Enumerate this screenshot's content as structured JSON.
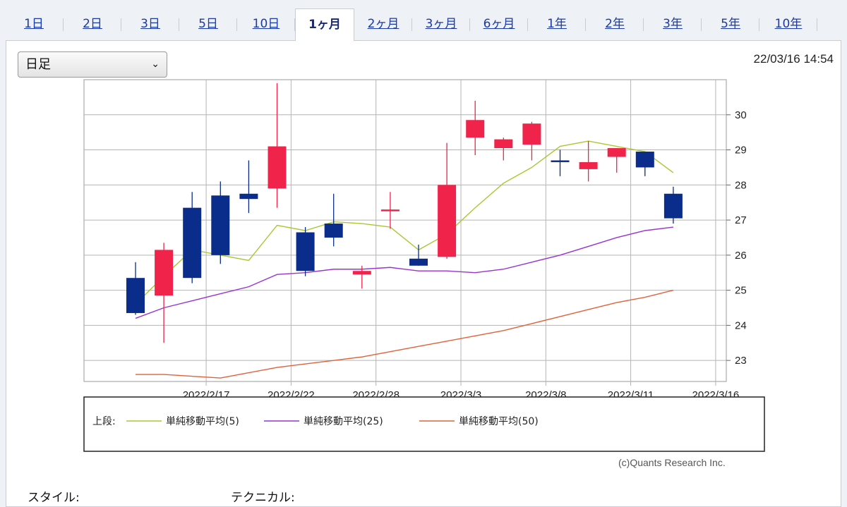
{
  "tabs": [
    {
      "label": "1日",
      "active": false
    },
    {
      "label": "2日",
      "active": false
    },
    {
      "label": "3日",
      "active": false
    },
    {
      "label": "5日",
      "active": false
    },
    {
      "label": "10日",
      "active": false
    },
    {
      "label": "1ヶ月",
      "active": true
    },
    {
      "label": "2ヶ月",
      "active": false
    },
    {
      "label": "3ヶ月",
      "active": false
    },
    {
      "label": "6ヶ月",
      "active": false
    },
    {
      "label": "1年",
      "active": false
    },
    {
      "label": "2年",
      "active": false
    },
    {
      "label": "3年",
      "active": false
    },
    {
      "label": "5年",
      "active": false
    },
    {
      "label": "10年",
      "active": false
    }
  ],
  "period_select": {
    "value": "日足"
  },
  "timestamp": "22/03/16 14:54",
  "credit": "(c)Quants Research Inc.",
  "bottom": {
    "style_label": "スタイル:",
    "technical_label": "テクニカル:"
  },
  "legend": {
    "prefix": "上段:",
    "items": [
      {
        "label": "単純移動平均(5)",
        "color": "#a8c832"
      },
      {
        "label": "単純移動平均(25)",
        "color": "#9a32d0"
      },
      {
        "label": "単純移動平均(50)",
        "color": "#e0623a"
      }
    ]
  },
  "colors": {
    "up": "#f0244a",
    "down": "#0a2d8c",
    "grid": "#b4b4b4"
  },
  "chart_data": {
    "type": "candlestick",
    "ylim": [
      22.4,
      31.0
    ],
    "yticks": [
      23,
      24,
      25,
      26,
      27,
      28,
      29,
      30
    ],
    "xticks": [
      {
        "index": 1,
        "label": "2022/2/17"
      },
      {
        "index": 4,
        "label": "2022/2/22"
      },
      {
        "index": 7,
        "label": "2022/2/28"
      },
      {
        "index": 10,
        "label": "2022/3/3"
      },
      {
        "index": 13,
        "label": "2022/3/8"
      },
      {
        "index": 16,
        "label": "2022/3/11"
      },
      {
        "index": 19,
        "label": "2022/3/16"
      }
    ],
    "candles": [
      {
        "open": 25.35,
        "high": 25.8,
        "low": 24.3,
        "close": 24.35
      },
      {
        "open": 24.85,
        "high": 26.35,
        "low": 23.5,
        "close": 26.15
      },
      {
        "open": 27.35,
        "high": 27.8,
        "low": 25.2,
        "close": 25.35
      },
      {
        "open": 27.7,
        "high": 28.1,
        "low": 25.75,
        "close": 26.0
      },
      {
        "open": 27.75,
        "high": 28.7,
        "low": 27.2,
        "close": 27.6
      },
      {
        "open": 27.9,
        "high": 30.9,
        "low": 27.35,
        "close": 29.1
      },
      {
        "open": 26.65,
        "high": 26.8,
        "low": 25.4,
        "close": 25.55
      },
      {
        "open": 26.9,
        "high": 27.75,
        "low": 26.25,
        "close": 26.5
      },
      {
        "open": 25.45,
        "high": 25.7,
        "low": 25.05,
        "close": 25.55
      },
      {
        "open": 27.25,
        "high": 27.8,
        "low": 26.75,
        "close": 27.3
      },
      {
        "open": 25.9,
        "high": 26.3,
        "low": 25.7,
        "close": 25.7
      },
      {
        "open": 25.95,
        "high": 29.2,
        "low": 25.9,
        "close": 28.0
      },
      {
        "open": 29.35,
        "high": 30.4,
        "low": 28.85,
        "close": 29.85
      },
      {
        "open": 29.05,
        "high": 29.35,
        "low": 28.7,
        "close": 29.3
      },
      {
        "open": 29.15,
        "high": 29.8,
        "low": 28.7,
        "close": 29.75
      },
      {
        "open": 28.7,
        "high": 29.0,
        "low": 28.25,
        "close": 28.65
      },
      {
        "open": 28.45,
        "high": 29.25,
        "low": 28.1,
        "close": 28.65
      },
      {
        "open": 28.8,
        "high": 29.05,
        "low": 28.35,
        "close": 29.05
      },
      {
        "open": 28.95,
        "high": 28.95,
        "low": 28.25,
        "close": 28.5
      },
      {
        "open": 27.75,
        "high": 27.95,
        "low": 26.9,
        "close": 27.05
      }
    ],
    "sma5": [
      24.6,
      25.4,
      26.15,
      26.0,
      25.85,
      26.85,
      26.7,
      26.95,
      26.9,
      26.8,
      26.15,
      26.6,
      27.35,
      28.05,
      28.5,
      29.1,
      29.25,
      29.1,
      28.95,
      28.35
    ],
    "sma25": [
      24.2,
      24.5,
      24.7,
      24.9,
      25.1,
      25.45,
      25.5,
      25.6,
      25.6,
      25.65,
      25.55,
      25.55,
      25.5,
      25.6,
      25.8,
      26.0,
      26.25,
      26.5,
      26.7,
      26.8
    ],
    "sma50": [
      22.6,
      22.6,
      22.55,
      22.5,
      22.65,
      22.8,
      22.9,
      23.0,
      23.1,
      23.25,
      23.4,
      23.55,
      23.7,
      23.85,
      24.05,
      24.25,
      24.45,
      24.65,
      24.8,
      25.0
    ]
  }
}
